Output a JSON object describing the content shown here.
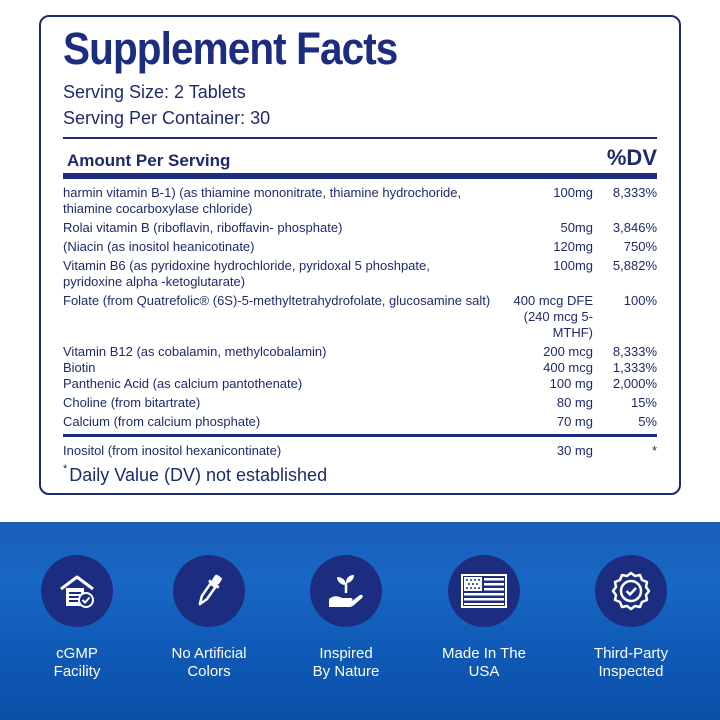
{
  "facts": {
    "title": "Supplement Facts",
    "serving_size": "Serving Size: 2 Tablets",
    "servings_per_container": "Serving Per Container: 30",
    "header_amount": "Amount Per Serving",
    "header_dv": "%DV",
    "rows": [
      {
        "name": "harmin vitamin B-1) (as thiamine mononitrate, thiamine hydrochoride, thiamine cocarboxylase chloride)",
        "amount": "100mg",
        "dv": "8,333%"
      },
      {
        "name": "Rolai vitamin B (riboflavin, riboffavin- phosphate)",
        "amount": "50mg",
        "dv": "3,846%"
      },
      {
        "name": "(Niacin (as inositol heanicotinate)",
        "amount": "120mg",
        "dv": "750%"
      },
      {
        "name": "Vitamin B6 (as pyridoxine hydrochloride, pyridoxal 5 phoshpate, pyridoxine alpha -ketoglutarate)",
        "amount": "100mg",
        "dv": "5,882%"
      },
      {
        "name": "Folate (from Quatrefolic® (6S)-5-methyltetrahydrofolate, glucosamine salt)",
        "amount": "400 mcg DFE",
        "amount2": "(240 mcg 5-MTHF)",
        "dv": "100%"
      },
      {
        "name": "Vitamin B12 (as cobalamin, methylcobalamin)",
        "amount": "200 mcg",
        "dv": "8,333%"
      },
      {
        "name": "Biotin",
        "amount": "400 mcg",
        "dv": "1,333%"
      },
      {
        "name": "Panthenic Acid (as calcium pantothenate)",
        "amount": "100 mg",
        "dv": "2,000%"
      },
      {
        "name": "Choline (from bitartrate)",
        "amount": "80 mg",
        "dv": "15%"
      },
      {
        "name": "Calcium (from calcium phosphate)",
        "amount": "70 mg",
        "dv": "5%"
      }
    ],
    "last_row": {
      "name": "Inositol (from inositol hexanicontinate)",
      "amount": "30 mg",
      "dv": "*"
    },
    "footnote_mark": "*",
    "footnote": "Daily Value (DV) not established"
  },
  "badges": [
    {
      "icon": "building-check-icon",
      "line1": "cGMP",
      "line2": "Facility"
    },
    {
      "icon": "dropper-icon",
      "line1": "No Artificial",
      "line2": "Colors"
    },
    {
      "icon": "hand-plant-icon",
      "line1": "Inspired",
      "line2": "By Nature"
    },
    {
      "icon": "usa-flag-icon",
      "line1": "Made In The",
      "line2": "USA"
    },
    {
      "icon": "seal-check-icon",
      "line1": "Third-Party",
      "line2": "Inspected"
    }
  ],
  "colors": {
    "navy": "#1c2d80",
    "banner_blue": "#1767c4",
    "text": "#1f2a6b"
  }
}
